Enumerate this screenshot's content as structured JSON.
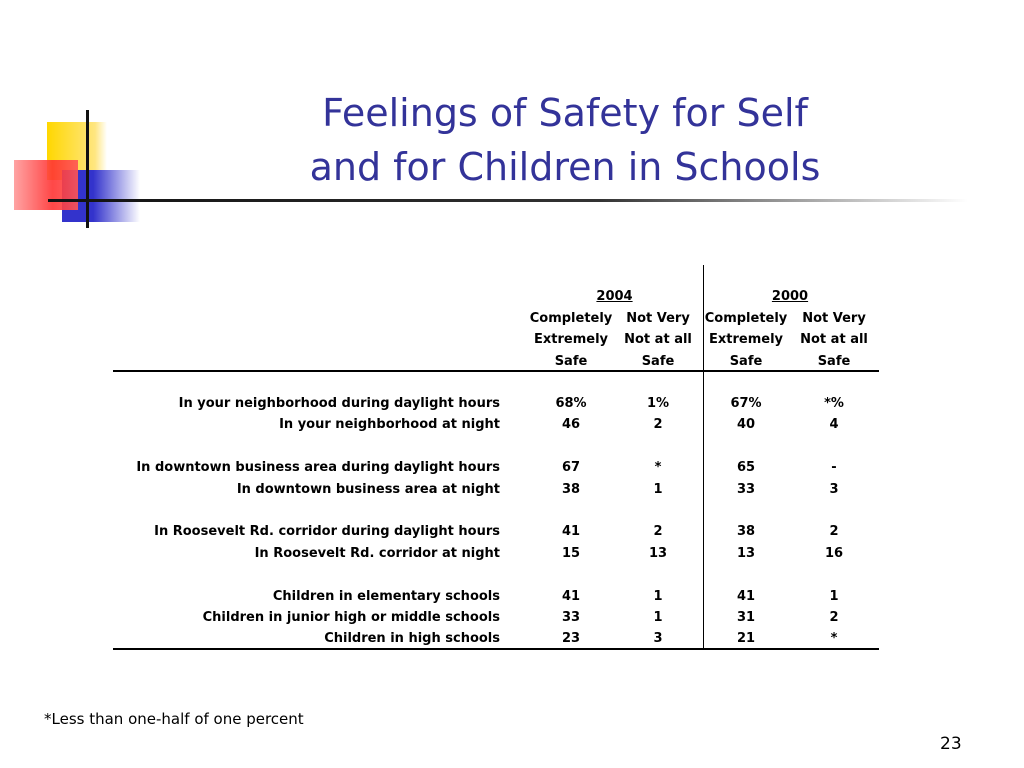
{
  "title": [
    "Feelings of Safety for Self",
    "and for Children in Schools"
  ],
  "table": {
    "years": [
      "2004",
      "2000"
    ],
    "column_headers": [
      [
        "Completely",
        "Extremely",
        "Safe"
      ],
      [
        "Not Very",
        "Not at all",
        "Safe"
      ],
      [
        "Completely",
        "Extremely",
        "Safe"
      ],
      [
        "Not Very",
        "Not at all",
        "Safe"
      ]
    ],
    "groups": [
      {
        "rows": [
          {
            "label": "In your neighborhood during daylight hours",
            "values": [
              "68%",
              "1%",
              "67%",
              "*%"
            ]
          },
          {
            "label": "In your neighborhood at night",
            "values": [
              "46",
              "2",
              "40",
              "4"
            ]
          }
        ]
      },
      {
        "rows": [
          {
            "label": "In downtown business area during daylight hours",
            "values": [
              "67",
              "*",
              "65",
              "-"
            ]
          },
          {
            "label": "In downtown business area at night",
            "values": [
              "38",
              "1",
              "33",
              "3"
            ]
          }
        ]
      },
      {
        "rows": [
          {
            "label": "In Roosevelt Rd. corridor during daylight hours",
            "values": [
              "41",
              "2",
              "38",
              "2"
            ]
          },
          {
            "label": "In Roosevelt Rd. corridor at night",
            "values": [
              "15",
              "13",
              "13",
              "16"
            ]
          }
        ]
      },
      {
        "rows": [
          {
            "label": "Children in elementary schools",
            "values": [
              "41",
              "1",
              "41",
              "1"
            ]
          },
          {
            "label": "Children in junior high or middle schools",
            "values": [
              "33",
              "1",
              "31",
              "2"
            ]
          },
          {
            "label": "Children in high schools",
            "values": [
              "23",
              "3",
              "21",
              "*"
            ]
          }
        ]
      }
    ]
  },
  "footnote": "*Less than one-half of one percent",
  "page_number": "23"
}
